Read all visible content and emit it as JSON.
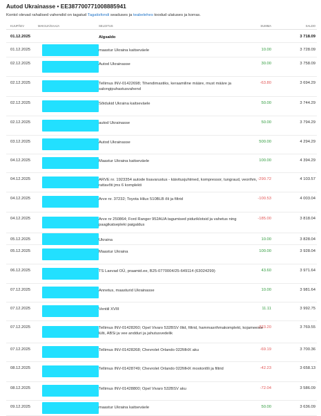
{
  "header": {
    "title": "Autod Ukrainasse • EE387700771008885941",
    "subtitle_before": "Kontol olevad rahalised vahendid on tagatud ",
    "link1": "Tagatisfondi",
    "subtitle_middle": " seaduses ja ",
    "link2": "teabelehes",
    "subtitle_after": " toodud ulatuses ja korras."
  },
  "columns": {
    "date": "KUUPÄEV",
    "payer": "MAKSJA/SAAJA",
    "description": "SELGITUS",
    "amount": "SUMMA",
    "balance": "SALDO"
  },
  "colors": {
    "positive": "#2e9a3c",
    "negative": "#e25555",
    "mask": "#22e0ff",
    "link": "#1f73c7"
  },
  "opening": {
    "date": "01.12.2025",
    "description": "Algsaldo",
    "balance": "3 718.09"
  },
  "rows": [
    {
      "date": "01.12.2025",
      "description": "maastur Ukraina kaitseväele",
      "amount": "10.00",
      "sign": "pos",
      "balance": "3 728.09"
    },
    {
      "date": "02.12.2025",
      "description": "Autod Ukrainasse",
      "amount": "30.00",
      "sign": "pos",
      "balance": "3 758.09"
    },
    {
      "date": "02.12.2025",
      "description": "Tellimus INV-01422698; Tihendimastiks, keraamiline määre, must määre ja salongipuhastusvahend",
      "amount": "-63.80",
      "sign": "neg",
      "balance": "3 694.29"
    },
    {
      "date": "02.12.2025",
      "description": "Sõidukid Ukraina kaitseväele",
      "amount": "50.00",
      "sign": "pos",
      "balance": "3 744.29"
    },
    {
      "date": "02.12.2025",
      "description": "autod Ukrainasse",
      "amount": "50.00",
      "sign": "pos",
      "balance": "3 794.29"
    },
    {
      "date": "03.12.2025",
      "description": "Autod Ukrainasse",
      "amount": "500.00",
      "sign": "pos",
      "balance": "4 294.29"
    },
    {
      "date": "04.12.2025",
      "description": "Maastur Ukraina kaitseväele",
      "amount": "100.00",
      "sign": "pos",
      "balance": "4 394.29"
    },
    {
      "date": "04.12.2025",
      "description": "ARVE nr. 1923354 autode lisavarustus - käivitusjuhtmed, kompressor, tungraud, veorihm, rattavõti jms 6 komplekti",
      "amount": "-290.72",
      "sign": "neg",
      "balance": "4 103.57"
    },
    {
      "date": "04.12.2025",
      "description": "Arve nr. 37232; Toyota Hilux 510BLB õli ja filtrid",
      "amount": "-100.53",
      "sign": "neg",
      "balance": "4 003.04"
    },
    {
      "date": "04.12.2025",
      "description": "Arve nr 250864; Ford Ranger 952AUA tagumised piduriklotsid ja vahetus ning paagikatsepleki paigaldus",
      "amount": "-185.00",
      "sign": "neg",
      "balance": "3 818.04"
    },
    {
      "date": "05.12.2025",
      "description": "Ukraina",
      "amount": "10.00",
      "sign": "pos",
      "balance": "3 828.04"
    },
    {
      "date": "05.12.2025",
      "description": "Maastur Ukraina",
      "amount": "100.00",
      "sign": "pos",
      "balance": "3 928.04"
    },
    {
      "date": "06.12.2025",
      "description": "TS Laevad OÜ, praamid.ee, B25-0770004/25-649114 (63024299)",
      "amount": "43.60",
      "sign": "pos",
      "balance": "3 971.64"
    },
    {
      "date": "07.12.2025",
      "description": "Annetus, maasturid Ukrainasse",
      "amount": "10.00",
      "sign": "pos",
      "balance": "3 981.64"
    },
    {
      "date": "07.12.2025",
      "description": "Ventiil XVIII",
      "amount": "11.11",
      "sign": "pos",
      "balance": "3 992.75"
    },
    {
      "date": "07.12.2025",
      "description": "Tellimus INV-01428260; Opel Vivaro 532BSV õlid, filtrid, hammasrihmakomplekt, kojameeste lülti, ABSi ja vee andduri ja jahutusvedelik",
      "amount": "-223.20",
      "sign": "neg",
      "balance": "3 769.55"
    },
    {
      "date": "07.12.2025",
      "description": "Tellimus INV-01428268; Chevrolet Orlando 022MHX aku",
      "amount": "-69.19",
      "sign": "neg",
      "balance": "3 700.36"
    },
    {
      "date": "08.12.2025",
      "description": "Tellimus INV-01428749; Chevrolet Orlando 022MHX mootoriõli ja filtrid",
      "amount": "-42.23",
      "sign": "neg",
      "balance": "3 658.13"
    },
    {
      "date": "08.12.2025",
      "description": "Tellimus INV-01428800; Opel Vivaro 532BSV aku",
      "amount": "-72.04",
      "sign": "neg",
      "balance": "3 586.09"
    },
    {
      "date": "09.12.2025",
      "description": "maastur Ukraina kaitseväele",
      "amount": "50.00",
      "sign": "pos",
      "balance": "3 636.09"
    }
  ]
}
